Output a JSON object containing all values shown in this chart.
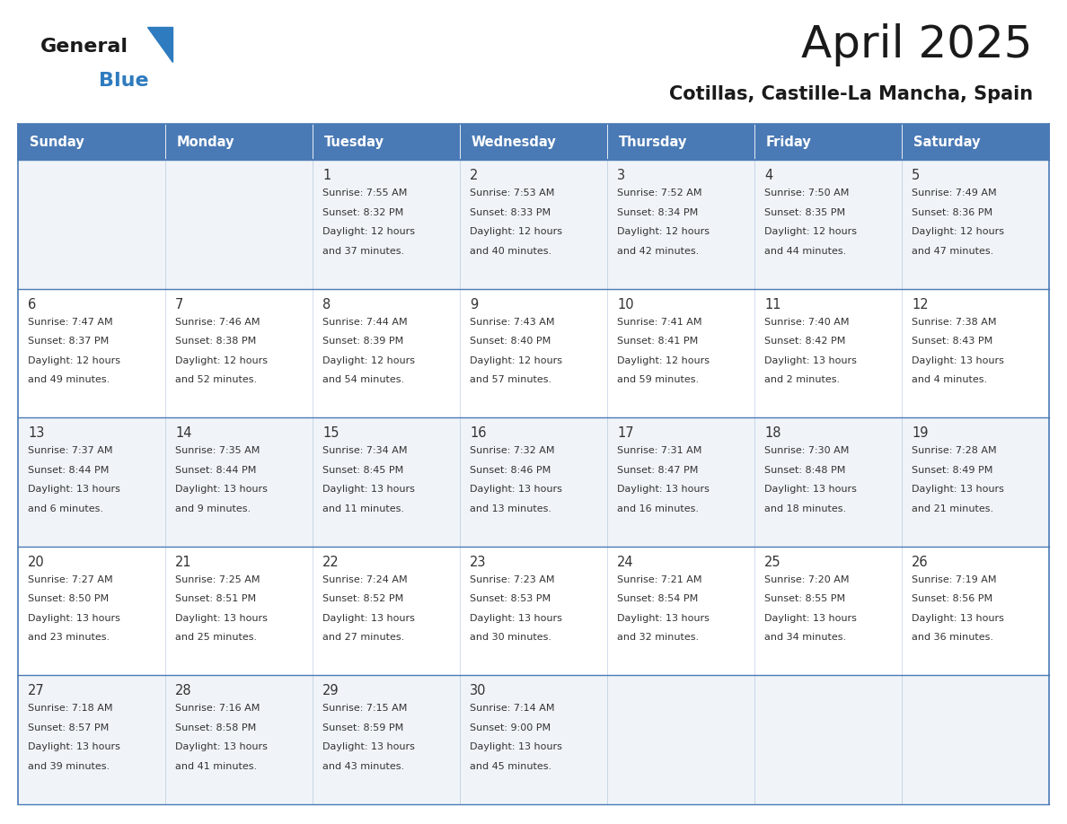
{
  "title": "April 2025",
  "subtitle": "Cotillas, Castille-La Mancha, Spain",
  "days_of_week": [
    "Sunday",
    "Monday",
    "Tuesday",
    "Wednesday",
    "Thursday",
    "Friday",
    "Saturday"
  ],
  "header_bg": "#4a7ab5",
  "header_text": "#ffffff",
  "row_bg_light": "#f0f4f8",
  "row_bg_white": "#ffffff",
  "border_color": "#4a7ab5",
  "cell_text_color": "#333333",
  "title_color": "#1a1a1a",
  "subtitle_color": "#1a1a1a",
  "logo_general_color": "#1a1a1a",
  "logo_blue_color": "#2e7bbf",
  "weeks": [
    [
      {
        "day": "",
        "lines": []
      },
      {
        "day": "",
        "lines": []
      },
      {
        "day": "1",
        "lines": [
          "Sunrise: 7:55 AM",
          "Sunset: 8:32 PM",
          "Daylight: 12 hours",
          "and 37 minutes."
        ]
      },
      {
        "day": "2",
        "lines": [
          "Sunrise: 7:53 AM",
          "Sunset: 8:33 PM",
          "Daylight: 12 hours",
          "and 40 minutes."
        ]
      },
      {
        "day": "3",
        "lines": [
          "Sunrise: 7:52 AM",
          "Sunset: 8:34 PM",
          "Daylight: 12 hours",
          "and 42 minutes."
        ]
      },
      {
        "day": "4",
        "lines": [
          "Sunrise: 7:50 AM",
          "Sunset: 8:35 PM",
          "Daylight: 12 hours",
          "and 44 minutes."
        ]
      },
      {
        "day": "5",
        "lines": [
          "Sunrise: 7:49 AM",
          "Sunset: 8:36 PM",
          "Daylight: 12 hours",
          "and 47 minutes."
        ]
      }
    ],
    [
      {
        "day": "6",
        "lines": [
          "Sunrise: 7:47 AM",
          "Sunset: 8:37 PM",
          "Daylight: 12 hours",
          "and 49 minutes."
        ]
      },
      {
        "day": "7",
        "lines": [
          "Sunrise: 7:46 AM",
          "Sunset: 8:38 PM",
          "Daylight: 12 hours",
          "and 52 minutes."
        ]
      },
      {
        "day": "8",
        "lines": [
          "Sunrise: 7:44 AM",
          "Sunset: 8:39 PM",
          "Daylight: 12 hours",
          "and 54 minutes."
        ]
      },
      {
        "day": "9",
        "lines": [
          "Sunrise: 7:43 AM",
          "Sunset: 8:40 PM",
          "Daylight: 12 hours",
          "and 57 minutes."
        ]
      },
      {
        "day": "10",
        "lines": [
          "Sunrise: 7:41 AM",
          "Sunset: 8:41 PM",
          "Daylight: 12 hours",
          "and 59 minutes."
        ]
      },
      {
        "day": "11",
        "lines": [
          "Sunrise: 7:40 AM",
          "Sunset: 8:42 PM",
          "Daylight: 13 hours",
          "and 2 minutes."
        ]
      },
      {
        "day": "12",
        "lines": [
          "Sunrise: 7:38 AM",
          "Sunset: 8:43 PM",
          "Daylight: 13 hours",
          "and 4 minutes."
        ]
      }
    ],
    [
      {
        "day": "13",
        "lines": [
          "Sunrise: 7:37 AM",
          "Sunset: 8:44 PM",
          "Daylight: 13 hours",
          "and 6 minutes."
        ]
      },
      {
        "day": "14",
        "lines": [
          "Sunrise: 7:35 AM",
          "Sunset: 8:44 PM",
          "Daylight: 13 hours",
          "and 9 minutes."
        ]
      },
      {
        "day": "15",
        "lines": [
          "Sunrise: 7:34 AM",
          "Sunset: 8:45 PM",
          "Daylight: 13 hours",
          "and 11 minutes."
        ]
      },
      {
        "day": "16",
        "lines": [
          "Sunrise: 7:32 AM",
          "Sunset: 8:46 PM",
          "Daylight: 13 hours",
          "and 13 minutes."
        ]
      },
      {
        "day": "17",
        "lines": [
          "Sunrise: 7:31 AM",
          "Sunset: 8:47 PM",
          "Daylight: 13 hours",
          "and 16 minutes."
        ]
      },
      {
        "day": "18",
        "lines": [
          "Sunrise: 7:30 AM",
          "Sunset: 8:48 PM",
          "Daylight: 13 hours",
          "and 18 minutes."
        ]
      },
      {
        "day": "19",
        "lines": [
          "Sunrise: 7:28 AM",
          "Sunset: 8:49 PM",
          "Daylight: 13 hours",
          "and 21 minutes."
        ]
      }
    ],
    [
      {
        "day": "20",
        "lines": [
          "Sunrise: 7:27 AM",
          "Sunset: 8:50 PM",
          "Daylight: 13 hours",
          "and 23 minutes."
        ]
      },
      {
        "day": "21",
        "lines": [
          "Sunrise: 7:25 AM",
          "Sunset: 8:51 PM",
          "Daylight: 13 hours",
          "and 25 minutes."
        ]
      },
      {
        "day": "22",
        "lines": [
          "Sunrise: 7:24 AM",
          "Sunset: 8:52 PM",
          "Daylight: 13 hours",
          "and 27 minutes."
        ]
      },
      {
        "day": "23",
        "lines": [
          "Sunrise: 7:23 AM",
          "Sunset: 8:53 PM",
          "Daylight: 13 hours",
          "and 30 minutes."
        ]
      },
      {
        "day": "24",
        "lines": [
          "Sunrise: 7:21 AM",
          "Sunset: 8:54 PM",
          "Daylight: 13 hours",
          "and 32 minutes."
        ]
      },
      {
        "day": "25",
        "lines": [
          "Sunrise: 7:20 AM",
          "Sunset: 8:55 PM",
          "Daylight: 13 hours",
          "and 34 minutes."
        ]
      },
      {
        "day": "26",
        "lines": [
          "Sunrise: 7:19 AM",
          "Sunset: 8:56 PM",
          "Daylight: 13 hours",
          "and 36 minutes."
        ]
      }
    ],
    [
      {
        "day": "27",
        "lines": [
          "Sunrise: 7:18 AM",
          "Sunset: 8:57 PM",
          "Daylight: 13 hours",
          "and 39 minutes."
        ]
      },
      {
        "day": "28",
        "lines": [
          "Sunrise: 7:16 AM",
          "Sunset: 8:58 PM",
          "Daylight: 13 hours",
          "and 41 minutes."
        ]
      },
      {
        "day": "29",
        "lines": [
          "Sunrise: 7:15 AM",
          "Sunset: 8:59 PM",
          "Daylight: 13 hours",
          "and 43 minutes."
        ]
      },
      {
        "day": "30",
        "lines": [
          "Sunrise: 7:14 AM",
          "Sunset: 9:00 PM",
          "Daylight: 13 hours",
          "and 45 minutes."
        ]
      },
      {
        "day": "",
        "lines": []
      },
      {
        "day": "",
        "lines": []
      },
      {
        "day": "",
        "lines": []
      }
    ]
  ]
}
